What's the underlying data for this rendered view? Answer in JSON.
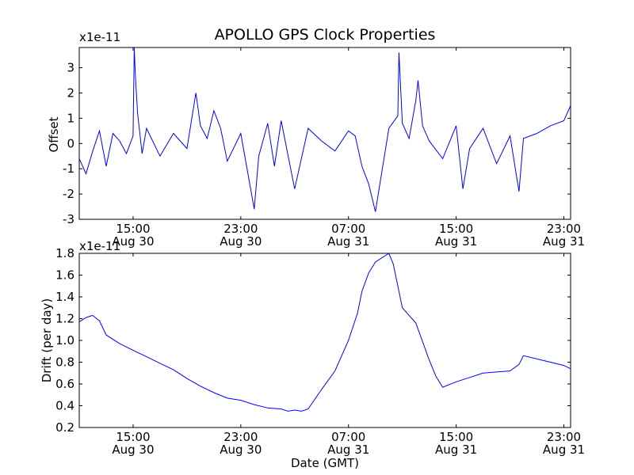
{
  "chart_data": [
    {
      "type": "line",
      "title": "APOLLO GPS Clock Properties",
      "ylabel": "Offset",
      "xlabel": "",
      "offset_text": "x1e-11",
      "ylim": [
        -3,
        3.8
      ],
      "yticks": [
        -3,
        -2,
        -1,
        0,
        1,
        2,
        3
      ],
      "xlim": [
        "2012-08-30T11:00",
        "2012-08-31T23:30"
      ],
      "xticks": [
        {
          "time": "2012-08-30T15:00",
          "label1": "15:00",
          "label2": "Aug 30"
        },
        {
          "time": "2012-08-30T23:00",
          "label1": "23:00",
          "label2": "Aug 30"
        },
        {
          "time": "2012-08-31T07:00",
          "label1": "07:00",
          "label2": "Aug 31"
        },
        {
          "time": "2012-08-31T15:00",
          "label1": "15:00",
          "label2": "Aug 31"
        },
        {
          "time": "2012-08-31T23:00",
          "label1": "23:00",
          "label2": "Aug 31"
        }
      ],
      "color": "#0000ff",
      "series": [
        {
          "values_note": "noisy offset trace (x1e-11), key samples",
          "x": [
            "2012-08-30T11:00",
            "2012-08-30T11:30",
            "2012-08-30T12:00",
            "2012-08-30T12:30",
            "2012-08-30T13:00",
            "2012-08-30T13:30",
            "2012-08-30T14:00",
            "2012-08-30T14:30",
            "2012-08-30T15:00",
            "2012-08-30T15:05",
            "2012-08-30T15:10",
            "2012-08-30T15:20",
            "2012-08-30T15:40",
            "2012-08-30T16:00",
            "2012-08-30T17:00",
            "2012-08-30T18:00",
            "2012-08-30T19:00",
            "2012-08-30T19:40",
            "2012-08-30T20:00",
            "2012-08-30T20:30",
            "2012-08-30T21:00",
            "2012-08-30T21:30",
            "2012-08-30T22:00",
            "2012-08-30T23:00",
            "2012-08-31T00:00",
            "2012-08-31T00:20",
            "2012-08-31T01:00",
            "2012-08-31T01:30",
            "2012-08-31T02:00",
            "2012-08-31T03:00",
            "2012-08-31T04:00",
            "2012-08-31T05:00",
            "2012-08-31T06:00",
            "2012-08-31T07:00",
            "2012-08-31T07:30",
            "2012-08-31T08:00",
            "2012-08-31T08:30",
            "2012-08-31T09:00",
            "2012-08-31T10:00",
            "2012-08-31T10:40",
            "2012-08-31T10:45",
            "2012-08-31T11:00",
            "2012-08-31T11:30",
            "2012-08-31T12:00",
            "2012-08-31T12:10",
            "2012-08-31T12:30",
            "2012-08-31T13:00",
            "2012-08-31T14:00",
            "2012-08-31T15:00",
            "2012-08-31T15:30",
            "2012-08-31T16:00",
            "2012-08-31T17:00",
            "2012-08-31T18:00",
            "2012-08-31T19:00",
            "2012-08-31T19:40",
            "2012-08-31T20:00",
            "2012-08-31T21:00",
            "2012-08-31T22:00",
            "2012-08-31T23:00",
            "2012-08-31T23:30"
          ],
          "values": [
            -0.6,
            -1.2,
            -0.3,
            0.5,
            -0.9,
            0.4,
            0.1,
            -0.4,
            0.3,
            3.8,
            2.7,
            1.2,
            -0.4,
            0.6,
            -0.5,
            0.4,
            -0.2,
            2.0,
            0.7,
            0.2,
            1.3,
            0.6,
            -0.7,
            0.4,
            -2.6,
            -0.5,
            0.8,
            -0.9,
            0.9,
            -1.8,
            0.6,
            0.1,
            -0.3,
            0.5,
            0.3,
            -0.9,
            -1.6,
            -2.7,
            0.6,
            1.1,
            3.6,
            0.8,
            0.2,
            1.7,
            2.5,
            0.7,
            0.1,
            -0.6,
            0.7,
            -1.8,
            -0.2,
            0.6,
            -0.8,
            0.3,
            -1.9,
            0.2,
            0.4,
            0.7,
            0.9,
            1.5
          ]
        }
      ]
    },
    {
      "type": "line",
      "title": "",
      "ylabel": "Drift (per day)",
      "xlabel": "Date (GMT)",
      "offset_text": "x1e-11",
      "ylim": [
        0.2,
        1.8
      ],
      "yticks": [
        0.2,
        0.4,
        0.6,
        0.8,
        1.0,
        1.2,
        1.4,
        1.6,
        1.8
      ],
      "ytick_labels": [
        "0.2",
        "0.4",
        "0.6",
        "0.8",
        "1.0",
        "1.2",
        "1.4",
        "1.6",
        "1.8"
      ],
      "xlim": [
        "2012-08-30T11:00",
        "2012-08-31T23:30"
      ],
      "xticks": [
        {
          "time": "2012-08-30T15:00",
          "label1": "15:00",
          "label2": "Aug 30"
        },
        {
          "time": "2012-08-30T23:00",
          "label1": "23:00",
          "label2": "Aug 30"
        },
        {
          "time": "2012-08-31T07:00",
          "label1": "07:00",
          "label2": "Aug 31"
        },
        {
          "time": "2012-08-31T15:00",
          "label1": "15:00",
          "label2": "Aug 31"
        },
        {
          "time": "2012-08-31T23:00",
          "label1": "23:00",
          "label2": "Aug 31"
        }
      ],
      "color": "#0000ff",
      "series": [
        {
          "x": [
            "2012-08-30T11:00",
            "2012-08-30T11:30",
            "2012-08-30T12:00",
            "2012-08-30T12:30",
            "2012-08-30T13:00",
            "2012-08-30T14:00",
            "2012-08-30T15:00",
            "2012-08-30T16:00",
            "2012-08-30T17:00",
            "2012-08-30T18:00",
            "2012-08-30T19:00",
            "2012-08-30T20:00",
            "2012-08-30T21:00",
            "2012-08-30T22:00",
            "2012-08-30T23:00",
            "2012-08-31T00:00",
            "2012-08-31T01:00",
            "2012-08-31T02:00",
            "2012-08-31T02:30",
            "2012-08-31T03:00",
            "2012-08-31T03:30",
            "2012-08-31T04:00",
            "2012-08-31T05:00",
            "2012-08-31T06:00",
            "2012-08-31T07:00",
            "2012-08-31T07:40",
            "2012-08-31T08:00",
            "2012-08-31T08:30",
            "2012-08-31T09:00",
            "2012-08-31T10:00",
            "2012-08-31T10:20",
            "2012-08-31T10:40",
            "2012-08-31T11:00",
            "2012-08-31T12:00",
            "2012-08-31T13:00",
            "2012-08-31T13:30",
            "2012-08-31T14:00",
            "2012-08-31T15:00",
            "2012-08-31T16:00",
            "2012-08-31T17:00",
            "2012-08-31T18:00",
            "2012-08-31T19:00",
            "2012-08-31T19:40",
            "2012-08-31T20:00",
            "2012-08-31T21:00",
            "2012-08-31T22:00",
            "2012-08-31T23:00",
            "2012-08-31T23:30"
          ],
          "values": [
            1.17,
            1.21,
            1.23,
            1.18,
            1.05,
            0.97,
            0.91,
            0.85,
            0.79,
            0.73,
            0.65,
            0.58,
            0.52,
            0.47,
            0.45,
            0.41,
            0.38,
            0.37,
            0.35,
            0.36,
            0.35,
            0.37,
            0.55,
            0.72,
            1.0,
            1.25,
            1.45,
            1.62,
            1.72,
            1.8,
            1.7,
            1.5,
            1.3,
            1.16,
            0.82,
            0.67,
            0.57,
            0.62,
            0.66,
            0.7,
            0.71,
            0.72,
            0.78,
            0.86,
            0.83,
            0.8,
            0.77,
            0.74
          ]
        }
      ]
    }
  ]
}
